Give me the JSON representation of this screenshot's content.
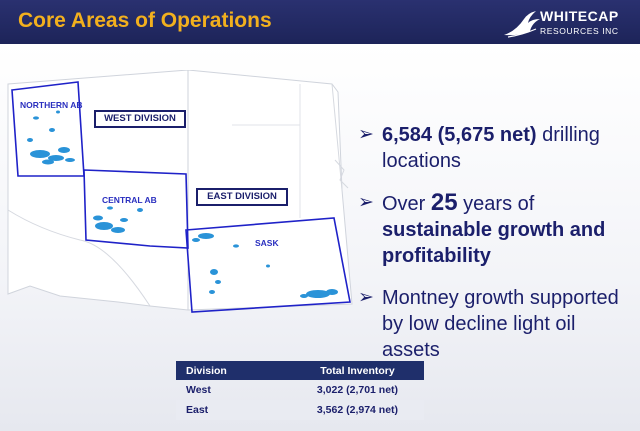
{
  "header": {
    "title": "Core Areas of Operations",
    "logo_name": "WHITECAP",
    "logo_sub": "RESOURCES INC"
  },
  "map": {
    "regions": [
      "NORTHERN AB",
      "CENTRAL AB",
      "SASK"
    ],
    "divisions": [
      "WEST DIVISION",
      "EAST DIVISION"
    ]
  },
  "bullets": [
    {
      "strong": "6,584 (5,675 net)",
      "rest": " drilling locations"
    },
    {
      "pre": "Over ",
      "big": "25",
      "mid": " years of ",
      "strong": "sustainable growth and profitability"
    },
    {
      "text": "Montney growth supported by low decline light oil assets"
    }
  ],
  "table": {
    "headers": [
      "Division",
      "Total Inventory"
    ],
    "rows": [
      [
        "West",
        "3,022 (2,701 net)"
      ],
      [
        "East",
        "3,562 (2,974 net)"
      ]
    ]
  }
}
